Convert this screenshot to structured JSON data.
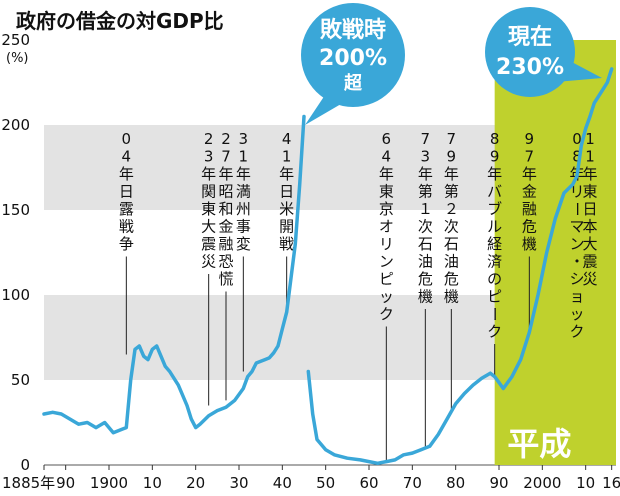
{
  "chart_data": {
    "type": "line",
    "title": "政府の借金の対GDP比",
    "y_unit": "(%)",
    "ylim": [
      0,
      250
    ],
    "y_ticks": [
      0,
      50,
      100,
      150,
      200,
      250
    ],
    "xlim": [
      1885,
      2017
    ],
    "x_ticks": [
      {
        "year": 1885,
        "label": "1885年"
      },
      {
        "year": 1890,
        "label": "90"
      },
      {
        "year": 1900,
        "label": "1900"
      },
      {
        "year": 1910,
        "label": "10"
      },
      {
        "year": 1920,
        "label": "20"
      },
      {
        "year": 1930,
        "label": "30"
      },
      {
        "year": 1940,
        "label": "40"
      },
      {
        "year": 1950,
        "label": "50"
      },
      {
        "year": 1960,
        "label": "60"
      },
      {
        "year": 1970,
        "label": "70"
      },
      {
        "year": 1980,
        "label": "80"
      },
      {
        "year": 1990,
        "label": "90"
      },
      {
        "year": 2000,
        "label": "2000"
      },
      {
        "year": 2010,
        "label": "10"
      },
      {
        "year": 2016,
        "label": "16"
      }
    ],
    "grid": "horizontal bands",
    "colors": {
      "line": "#3aa7d8",
      "heisei_band": "#bfd12d",
      "band_gray": "#e3e3e3",
      "bubble": "#3aa7d8"
    },
    "series": [
      {
        "name": "",
        "segments": [
          [
            [
              1885,
              30
            ],
            [
              1887,
              31
            ],
            [
              1889,
              30
            ],
            [
              1891,
              27
            ],
            [
              1893,
              24
            ],
            [
              1895,
              25
            ],
            [
              1897,
              22
            ],
            [
              1899,
              25
            ],
            [
              1901,
              19
            ],
            [
              1903,
              21
            ],
            [
              1904,
              22
            ],
            [
              1905,
              50
            ],
            [
              1906,
              68
            ],
            [
              1907,
              70
            ],
            [
              1908,
              64
            ],
            [
              1909,
              62
            ],
            [
              1910,
              68
            ],
            [
              1911,
              70
            ],
            [
              1912,
              64
            ],
            [
              1913,
              58
            ],
            [
              1914,
              55
            ],
            [
              1916,
              47
            ],
            [
              1918,
              35
            ],
            [
              1919,
              27
            ],
            [
              1920,
              22
            ],
            [
              1921,
              24
            ],
            [
              1923,
              29
            ],
            [
              1925,
              32
            ],
            [
              1927,
              34
            ],
            [
              1929,
              38
            ],
            [
              1931,
              45
            ],
            [
              1932,
              52
            ],
            [
              1933,
              55
            ],
            [
              1934,
              60
            ],
            [
              1936,
              62
            ],
            [
              1937,
              63
            ],
            [
              1938,
              66
            ],
            [
              1939,
              70
            ],
            [
              1940,
              80
            ],
            [
              1941,
              90
            ],
            [
              1942,
              110
            ],
            [
              1943,
              130
            ],
            [
              1944,
              165
            ],
            [
              1945,
              205
            ]
          ],
          [
            [
              1946,
              55
            ],
            [
              1947,
              30
            ],
            [
              1948,
              15
            ],
            [
              1950,
              9
            ],
            [
              1952,
              6
            ],
            [
              1955,
              4
            ],
            [
              1958,
              3
            ],
            [
              1960,
              2
            ],
            [
              1962,
              1
            ],
            [
              1964,
              2
            ],
            [
              1966,
              3
            ],
            [
              1968,
              6
            ],
            [
              1970,
              7
            ],
            [
              1972,
              9
            ],
            [
              1974,
              11
            ],
            [
              1976,
              18
            ],
            [
              1978,
              27
            ],
            [
              1980,
              36
            ],
            [
              1982,
              42
            ],
            [
              1984,
              47
            ],
            [
              1986,
              51
            ],
            [
              1988,
              54
            ],
            [
              1989,
              52
            ],
            [
              1991,
              45
            ],
            [
              1993,
              52
            ],
            [
              1995,
              62
            ],
            [
              1997,
              78
            ],
            [
              1999,
              100
            ],
            [
              2001,
              125
            ],
            [
              2003,
              145
            ],
            [
              2005,
              160
            ],
            [
              2007,
              165
            ],
            [
              2008,
              170
            ],
            [
              2009,
              188
            ],
            [
              2010,
              198
            ],
            [
              2011,
              205
            ],
            [
              2012,
              213
            ],
            [
              2013,
              217
            ],
            [
              2014,
              221
            ],
            [
              2015,
              225
            ],
            [
              2016,
              233
            ]
          ]
        ]
      }
    ],
    "highlight_region": {
      "from": 1989,
      "to": 2017,
      "label": "平成"
    },
    "callouts": [
      {
        "lines": [
          "敗戦時",
          "200%",
          "超"
        ],
        "year": 1945,
        "value": 205
      },
      {
        "lines": [
          "現在",
          "230%"
        ],
        "year": 2016,
        "value": 233
      }
    ],
    "annotations": [
      {
        "year": 1904,
        "value": 65,
        "text": "04年 日露戦争"
      },
      {
        "year": 1923,
        "value": 35,
        "text": "23年 関東大震災"
      },
      {
        "year": 1927,
        "value": 38,
        "text": "27年 昭和金融恐慌"
      },
      {
        "year": 1931,
        "value": 55,
        "text": "31年 満州事変"
      },
      {
        "year": 1941,
        "value": 92,
        "text": "41年 日米開戦"
      },
      {
        "year": 1964,
        "value": 2,
        "text": "64年 東京オリンピック"
      },
      {
        "year": 1973,
        "value": 10,
        "text": "73年 第１次石油危機"
      },
      {
        "year": 1979,
        "value": 33,
        "text": "79年 第２次石油危機"
      },
      {
        "year": 1989,
        "value": 52,
        "text": "89年 バブル経済のピーク"
      },
      {
        "year": 1997,
        "value": 78,
        "text": "97年 金融危機"
      },
      {
        "year": 2008,
        "value": 170,
        "text": "08年 リーマン・ショック"
      },
      {
        "year": 2011,
        "value": 205,
        "text": "11年 東日本大震災"
      }
    ]
  }
}
